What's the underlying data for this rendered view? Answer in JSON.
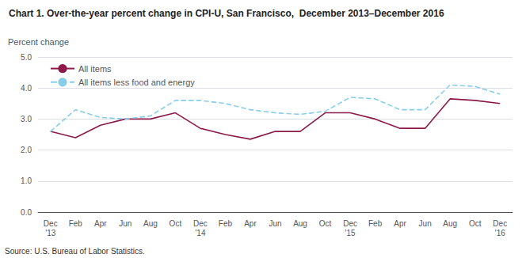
{
  "chart_data": {
    "type": "line",
    "title": "Chart 1. Over-the-year percent change in CPI-U, San Francisco,  December 2013–December 2016",
    "ylabel": "Percent change",
    "annotations": [
      "Source: U.S. Bureau of Labor Statistics."
    ],
    "categories": [
      "Dec\n'13",
      "Feb",
      "Apr",
      "Jun",
      "Aug",
      "Oct",
      "Dec\n'14",
      "Feb",
      "Apr",
      "Jun",
      "Aug",
      "Oct",
      "Dec\n'15",
      "Feb",
      "Apr",
      "Jun",
      "Aug",
      "Oct",
      "Dec\n'16"
    ],
    "series": [
      {
        "name": "All items",
        "color": "#8B1A4A",
        "line_style": "solid",
        "values": [
          2.6,
          2.4,
          2.8,
          3.0,
          3.0,
          3.2,
          2.7,
          2.5,
          2.35,
          2.6,
          2.6,
          3.2,
          3.2,
          3.0,
          2.7,
          2.7,
          3.65,
          3.6,
          3.5
        ]
      },
      {
        "name": "All items less food and energy",
        "color": "#87CEEB",
        "line_style": "dashed",
        "values": [
          2.6,
          3.3,
          3.05,
          3.0,
          3.1,
          3.6,
          3.6,
          3.5,
          3.3,
          3.2,
          3.15,
          3.25,
          3.7,
          3.65,
          3.3,
          3.3,
          4.1,
          4.05,
          3.8
        ]
      }
    ],
    "ylim": [
      0.0,
      5.0
    ],
    "yticks": [
      {
        "value": 0,
        "label": "0.0"
      },
      {
        "value": 1,
        "label": "1.0"
      },
      {
        "value": 2,
        "label": "2.0"
      },
      {
        "value": 3,
        "label": "3.0"
      },
      {
        "value": 4,
        "label": "4.0"
      },
      {
        "value": 5,
        "label": "5.0"
      }
    ],
    "grid": true,
    "legend": "upper left"
  }
}
